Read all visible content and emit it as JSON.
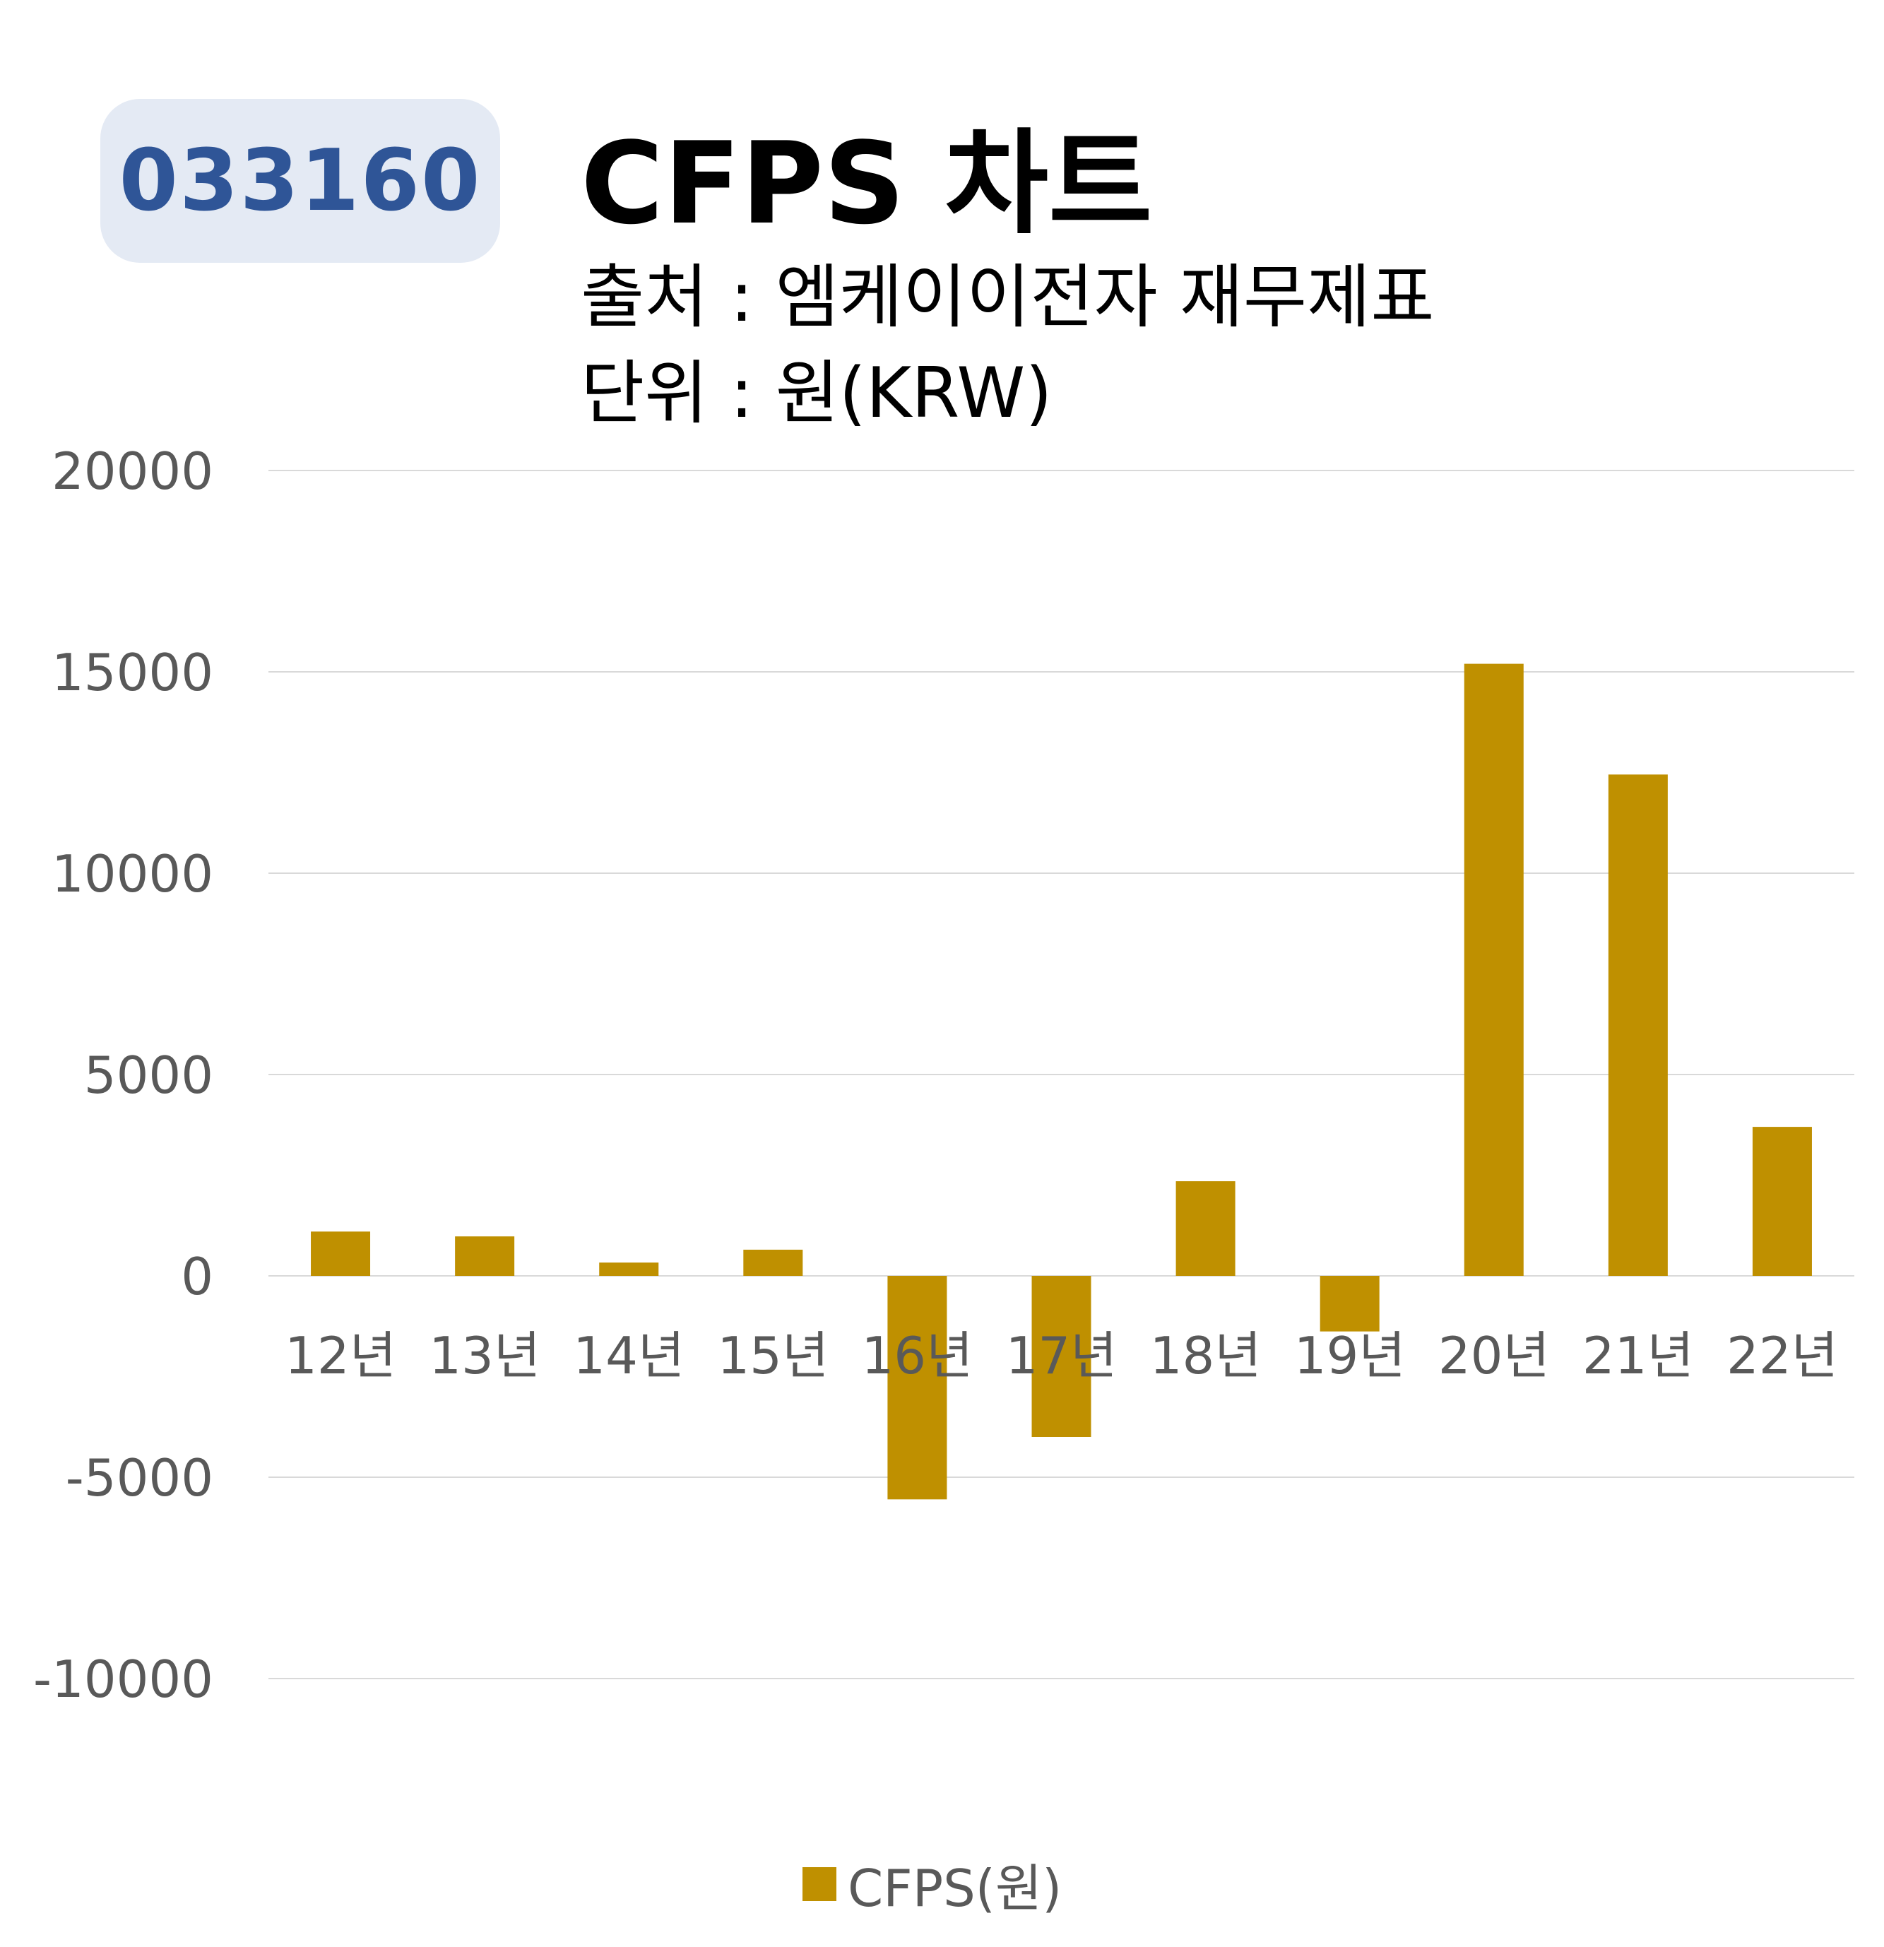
{
  "ticker": "033160",
  "title": "CFPS 차트",
  "subtitle_source": "출처 : 엠케이이전자 재무제표",
  "subtitle_unit": "단위 : 원(KRW)",
  "colors": {
    "bar": "#bf9000",
    "grid": "#d9d9d9",
    "tick_text": "#595959",
    "badge_bg": "#e4eaf4",
    "badge_text": "#2f5597"
  },
  "chart_data": {
    "type": "bar",
    "categories": [
      "12년",
      "13년",
      "14년",
      "15년",
      "16년",
      "17년",
      "18년",
      "19년",
      "20년",
      "21년",
      "22년"
    ],
    "series": [
      {
        "name": "CFPS(원)",
        "values": [
          1100,
          980,
          330,
          650,
          -5550,
          -4000,
          2350,
          -1380,
          15200,
          12450,
          3700
        ]
      }
    ],
    "ylim": [
      -10000,
      20000
    ],
    "yticks": [
      "20000",
      "15000",
      "10000",
      "5000",
      "0",
      "-5000",
      "-10000"
    ],
    "grid": true,
    "legend": "bottom"
  }
}
